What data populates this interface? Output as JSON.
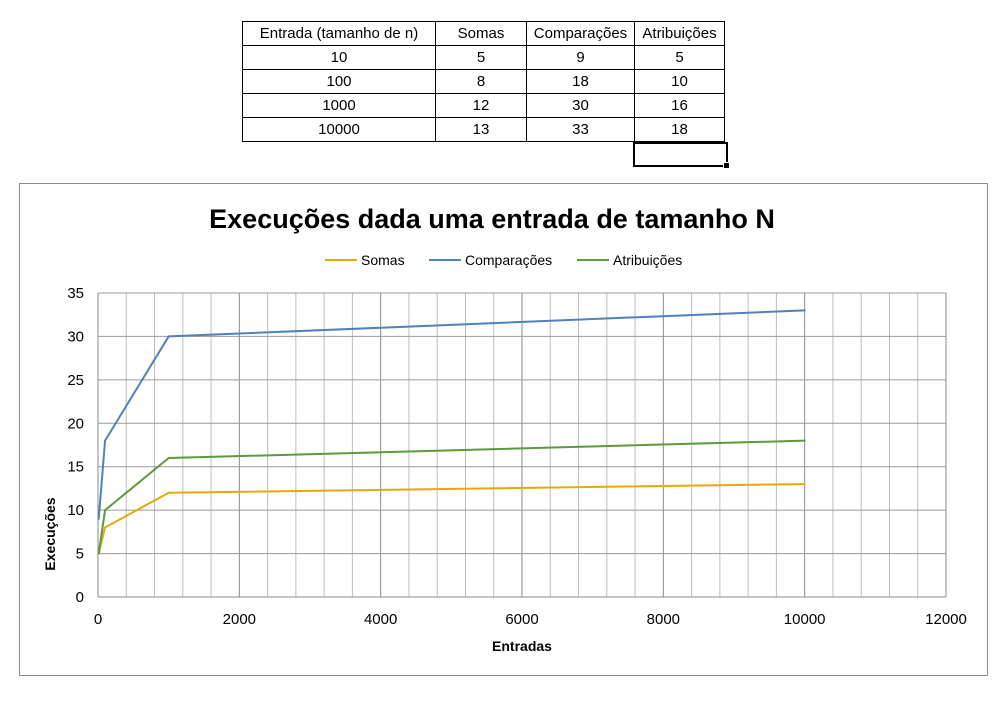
{
  "table": {
    "headers": [
      "Entrada (tamanho de n)",
      "Somas",
      "Comparações",
      "Atribuições"
    ],
    "rows": [
      [
        "10",
        "5",
        "9",
        "5"
      ],
      [
        "100",
        "8",
        "18",
        "10"
      ],
      [
        "1000",
        "12",
        "30",
        "16"
      ],
      [
        "10000",
        "13",
        "33",
        "18"
      ]
    ]
  },
  "chart_data": {
    "type": "line",
    "title": "Execuções dada uma entrada de tamanho N",
    "xlabel": "Entradas",
    "ylabel": "Execuções",
    "x": [
      10,
      100,
      1000,
      10000
    ],
    "series": [
      {
        "name": "Somas",
        "color": "#e8a80c",
        "values": [
          5,
          8,
          12,
          13
        ]
      },
      {
        "name": "Comparações",
        "color": "#4f81bd",
        "values": [
          9,
          18,
          30,
          33
        ]
      },
      {
        "name": "Atribuições",
        "color": "#5b9a3d",
        "values": [
          5,
          10,
          16,
          18
        ]
      }
    ],
    "xlim": [
      0,
      12000
    ],
    "ylim": [
      0,
      35
    ],
    "xticks": [
      0,
      2000,
      4000,
      6000,
      8000,
      10000,
      12000
    ],
    "yticks": [
      0,
      5,
      10,
      15,
      20,
      25,
      30,
      35
    ],
    "grid": true,
    "legend": "top"
  }
}
